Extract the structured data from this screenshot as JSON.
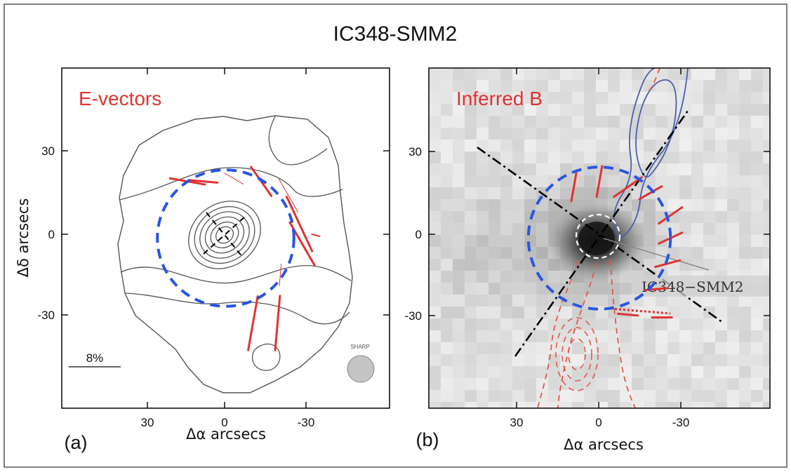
{
  "figure": {
    "title": "IC348-SMM2"
  },
  "colors": {
    "vector_red": "#e03232",
    "circle_blue": "#2a55e0",
    "contour_gray": "#555555",
    "blue_contour": "#4a5fa8",
    "dashed_red": "#e05a4a"
  },
  "chart_data": [
    {
      "type": "scatter",
      "panel_label": "(a)",
      "overlay_label": "E-vectors",
      "xlabel": "Δα arcsecs",
      "ylabel": "Δδ arcsecs",
      "x_ticks": [
        "30",
        "0",
        "-30"
      ],
      "y_ticks": [
        "30",
        "0",
        "-30"
      ],
      "xlim": [
        60,
        -60
      ],
      "ylim": [
        -60,
        60
      ],
      "scale_bar_label": "8%",
      "beam_label": "SHARP",
      "circle": {
        "center": [
          0,
          0
        ],
        "radius": 25
      },
      "vectors": [
        {
          "x": 14,
          "y": 20,
          "angle": -80,
          "length": 13,
          "width": 3
        },
        {
          "x": 8,
          "y": 20,
          "angle": -85,
          "length": 10,
          "width": 3
        },
        {
          "x": -3,
          "y": 21,
          "angle": -60,
          "length": 8,
          "width": 1
        },
        {
          "x": -13,
          "y": 20,
          "angle": -35,
          "length": 13,
          "width": 3
        },
        {
          "x": -23,
          "y": 15,
          "angle": -30,
          "length": 14,
          "width": 1
        },
        {
          "x": -27,
          "y": 5,
          "angle": -25,
          "length": 22,
          "width": 3
        },
        {
          "x": -28,
          "y": -2,
          "angle": -30,
          "length": 18,
          "width": 3
        },
        {
          "x": -33,
          "y": 1,
          "angle": -75,
          "length": 3,
          "width": 2
        },
        {
          "x": -20,
          "y": -13,
          "angle": 5,
          "length": 8,
          "width": 1
        },
        {
          "x": -10,
          "y": -30,
          "angle": 10,
          "length": 20,
          "width": 3
        },
        {
          "x": -19,
          "y": -30,
          "angle": 5,
          "length": 20,
          "width": 3
        }
      ]
    },
    {
      "type": "scatter",
      "panel_label": "(b)",
      "overlay_label": "Inferred B",
      "source_label": "IC348−SMM2",
      "xlabel": "Δα arcsecs",
      "ylabel": "",
      "x_ticks": [
        "30",
        "0",
        "-30"
      ],
      "y_ticks": [
        "30",
        "0",
        "-30"
      ],
      "xlim": [
        60,
        -60
      ],
      "ylim": [
        -60,
        60
      ],
      "circle": {
        "center": [
          0,
          0
        ],
        "radius": 25
      },
      "vectors": [
        {
          "x": 9,
          "y": 18,
          "angle": 10,
          "length": 10,
          "width": 3
        },
        {
          "x": 0,
          "y": 20,
          "angle": 10,
          "length": 11,
          "width": 3
        },
        {
          "x": -10,
          "y": 18,
          "angle": 55,
          "length": 12,
          "width": 3
        },
        {
          "x": -18,
          "y": 16,
          "angle": 60,
          "length": 9,
          "width": 3
        },
        {
          "x": -25,
          "y": 8,
          "angle": 55,
          "length": 10,
          "width": 3
        },
        {
          "x": -25,
          "y": 0,
          "angle": 65,
          "length": 9,
          "width": 3
        },
        {
          "x": -24,
          "y": -9,
          "angle": 75,
          "length": 9,
          "width": 3
        },
        {
          "x": -20,
          "y": -18,
          "angle": 85,
          "length": 8,
          "width": 3
        },
        {
          "x": -10,
          "y": -27,
          "angle": 95,
          "length": 7,
          "width": 3
        },
        {
          "x": -22,
          "y": -28,
          "angle": 90,
          "length": 7,
          "width": 3
        }
      ]
    }
  ]
}
